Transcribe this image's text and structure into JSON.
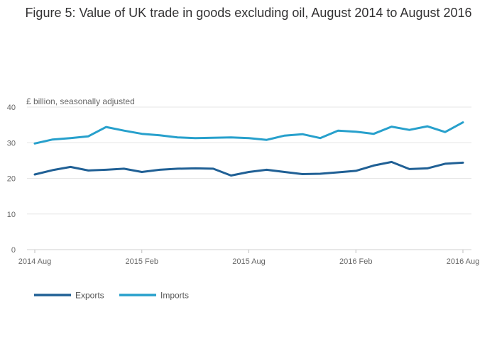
{
  "page": {
    "title": "Figure 5: Value of UK trade in goods excluding oil, August 2014 to August 2016"
  },
  "chart_data": {
    "type": "line",
    "title": "Figure 5: Value of UK trade in goods excluding oil, August 2014 to August 2016",
    "xlabel": "",
    "ylabel": "£ billion, seasonally adjusted",
    "ylim": [
      0,
      40
    ],
    "yticks": [
      0,
      10,
      20,
      30,
      40
    ],
    "grid": true,
    "legend_position": "bottom-left",
    "categories": [
      "2014 Aug",
      "2014 Sep",
      "2014 Oct",
      "2014 Nov",
      "2014 Dec",
      "2015 Jan",
      "2015 Feb",
      "2015 Mar",
      "2015 Apr",
      "2015 May",
      "2015 Jun",
      "2015 Jul",
      "2015 Aug",
      "2015 Sep",
      "2015 Oct",
      "2015 Nov",
      "2015 Dec",
      "2016 Jan",
      "2016 Feb",
      "2016 Mar",
      "2016 Apr",
      "2016 May",
      "2016 Jun",
      "2016 Jul",
      "2016 Aug"
    ],
    "x_tick_labels": [
      {
        "index": 0,
        "label": "2014 Aug"
      },
      {
        "index": 6,
        "label": "2015 Feb"
      },
      {
        "index": 12,
        "label": "2015 Aug"
      },
      {
        "index": 18,
        "label": "2016 Feb"
      },
      {
        "index": 24,
        "label": "2016 Aug"
      }
    ],
    "series": [
      {
        "name": "Exports",
        "color": "#206095",
        "values": [
          21.1,
          22.3,
          23.2,
          22.2,
          22.4,
          22.7,
          21.8,
          22.4,
          22.7,
          22.8,
          22.7,
          20.8,
          21.8,
          22.4,
          21.8,
          21.2,
          21.3,
          21.7,
          22.1,
          23.6,
          24.6,
          22.6,
          22.8,
          24.1,
          24.4
        ]
      },
      {
        "name": "Imports",
        "color": "#27a0cc",
        "values": [
          29.8,
          30.9,
          31.3,
          31.8,
          34.4,
          33.4,
          32.5,
          32.1,
          31.5,
          31.3,
          31.4,
          31.5,
          31.3,
          30.8,
          32.0,
          32.4,
          31.3,
          33.4,
          33.1,
          32.5,
          34.5,
          33.6,
          34.6,
          33.0,
          35.7
        ]
      }
    ]
  }
}
